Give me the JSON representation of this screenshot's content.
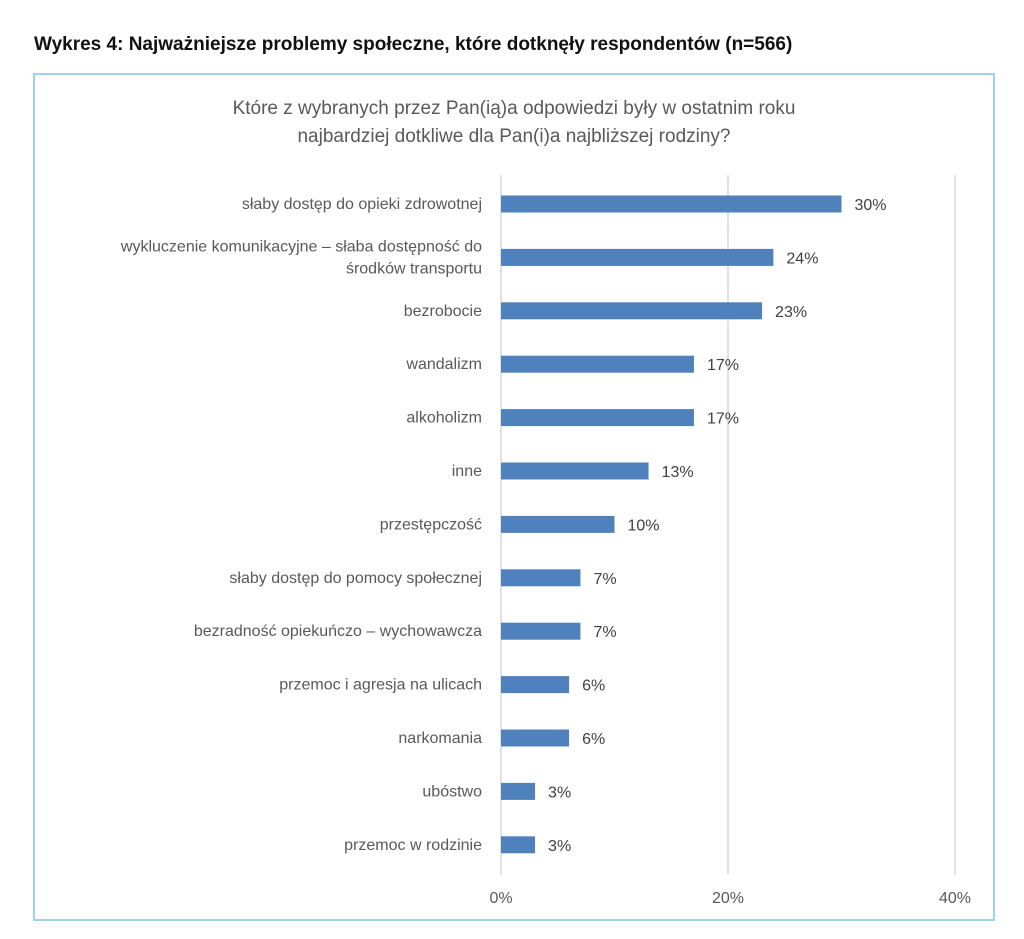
{
  "figure_title": "Wykres 4: Najważniejsze problemy społeczne, które dotknęły respondentów (n=566)",
  "chart_data": {
    "type": "bar",
    "orientation": "horizontal",
    "title_lines": [
      "Które z wybranych przez Pan(ią)a odpowiedzi były w ostatnim roku",
      "najbardziej dotkliwe dla Pan(i)a najbliższej rodziny?"
    ],
    "categories": [
      [
        "słaby dostęp do opieki zdrowotnej"
      ],
      [
        "wykluczenie komunikacyjne – słaba dostępność do",
        "środków transportu"
      ],
      [
        "bezrobocie"
      ],
      [
        "wandalizm"
      ],
      [
        "alkoholizm"
      ],
      [
        "inne"
      ],
      [
        "przestępczość"
      ],
      [
        "słaby dostęp do pomocy społecznej"
      ],
      [
        "bezradność opiekuńczo – wychowawcza"
      ],
      [
        "przemoc i agresja na ulicach"
      ],
      [
        "narkomania"
      ],
      [
        "ubóstwo"
      ],
      [
        "przemoc w rodzinie"
      ]
    ],
    "values": [
      30,
      24,
      23,
      17,
      17,
      13,
      10,
      7,
      7,
      6,
      6,
      3,
      3
    ],
    "value_labels": [
      "30%",
      "24%",
      "23%",
      "17%",
      "17%",
      "13%",
      "10%",
      "7%",
      "7%",
      "6%",
      "6%",
      "3%",
      "3%"
    ],
    "xlim": [
      0,
      40
    ],
    "xticks": [
      0,
      20,
      40
    ],
    "xtick_labels": [
      "0%",
      "20%",
      "40%"
    ],
    "grid": "vertical",
    "bar_color": "#4f81bd",
    "grid_color": "#d9d9d9",
    "frame_color": "#9fd2e4"
  }
}
